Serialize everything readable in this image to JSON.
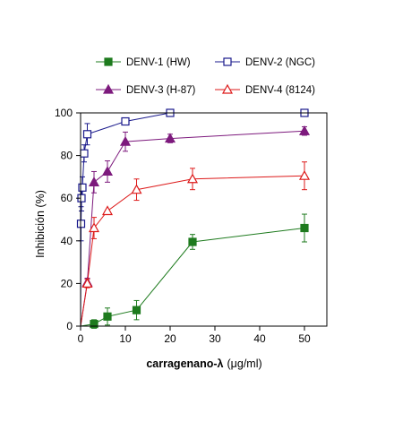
{
  "chart_data": {
    "type": "line",
    "xlabel": "carragenano-λ (μg/ml)",
    "xlabel_bold": "carragenano-λ",
    "xlabel_unit": "(μg/ml)",
    "ylabel": "Inhibición (%)",
    "xlim": [
      0,
      55
    ],
    "ylim": [
      0,
      100
    ],
    "x_ticks": [
      0,
      10,
      20,
      30,
      40,
      50
    ],
    "y_ticks": [
      0,
      20,
      40,
      60,
      80,
      100
    ],
    "grid": false,
    "legend_position": "top",
    "series": [
      {
        "name": "DENV-1 (HW)",
        "color": "#1e7b1e",
        "marker": "square-filled",
        "points": [
          {
            "x": 0,
            "y": 0,
            "err": 0
          },
          {
            "x": 3,
            "y": 1,
            "err": 2
          },
          {
            "x": 6,
            "y": 4.5,
            "err": 4
          },
          {
            "x": 12.5,
            "y": 7.5,
            "err": 4.5
          },
          {
            "x": 25,
            "y": 39.5,
            "err": 3.5
          },
          {
            "x": 50,
            "y": 46,
            "err": 6.5
          }
        ]
      },
      {
        "name": "DENV-2 (NGC)",
        "color": "#1a1a8c",
        "marker": "square-open",
        "points": [
          {
            "x": 0,
            "y": 0,
            "err": 0
          },
          {
            "x": 0.1,
            "y": 48,
            "err": 8
          },
          {
            "x": 0.2,
            "y": 60,
            "err": 6
          },
          {
            "x": 0.4,
            "y": 65,
            "err": 5
          },
          {
            "x": 0.8,
            "y": 81,
            "err": 4
          },
          {
            "x": 1.5,
            "y": 90,
            "err": 5
          },
          {
            "x": 10,
            "y": 96,
            "err": 0
          },
          {
            "x": 20,
            "y": 100,
            "err": 0
          },
          {
            "x": 50,
            "y": 100,
            "err": 0
          }
        ]
      },
      {
        "name": "DENV-3 (H-87)",
        "color": "#7d1a7d",
        "marker": "triangle-filled",
        "points": [
          {
            "x": 0,
            "y": 0,
            "err": 0
          },
          {
            "x": 1.5,
            "y": 20.5,
            "err": 2
          },
          {
            "x": 3,
            "y": 67.5,
            "err": 5
          },
          {
            "x": 6,
            "y": 72.5,
            "err": 5
          },
          {
            "x": 10,
            "y": 86.5,
            "err": 4.5
          },
          {
            "x": 20,
            "y": 88,
            "err": 2
          },
          {
            "x": 50,
            "y": 91.5,
            "err": 2
          }
        ]
      },
      {
        "name": "DENV-4 (8124)",
        "color": "#dd1a1a",
        "marker": "triangle-open",
        "points": [
          {
            "x": 0,
            "y": 0,
            "err": 0
          },
          {
            "x": 1.5,
            "y": 20,
            "err": 2
          },
          {
            "x": 3,
            "y": 46,
            "err": 5
          },
          {
            "x": 6,
            "y": 54,
            "err": 0
          },
          {
            "x": 12.5,
            "y": 64,
            "err": 5
          },
          {
            "x": 25,
            "y": 69,
            "err": 5
          },
          {
            "x": 50,
            "y": 70.5,
            "err": 6.5
          }
        ]
      }
    ]
  }
}
